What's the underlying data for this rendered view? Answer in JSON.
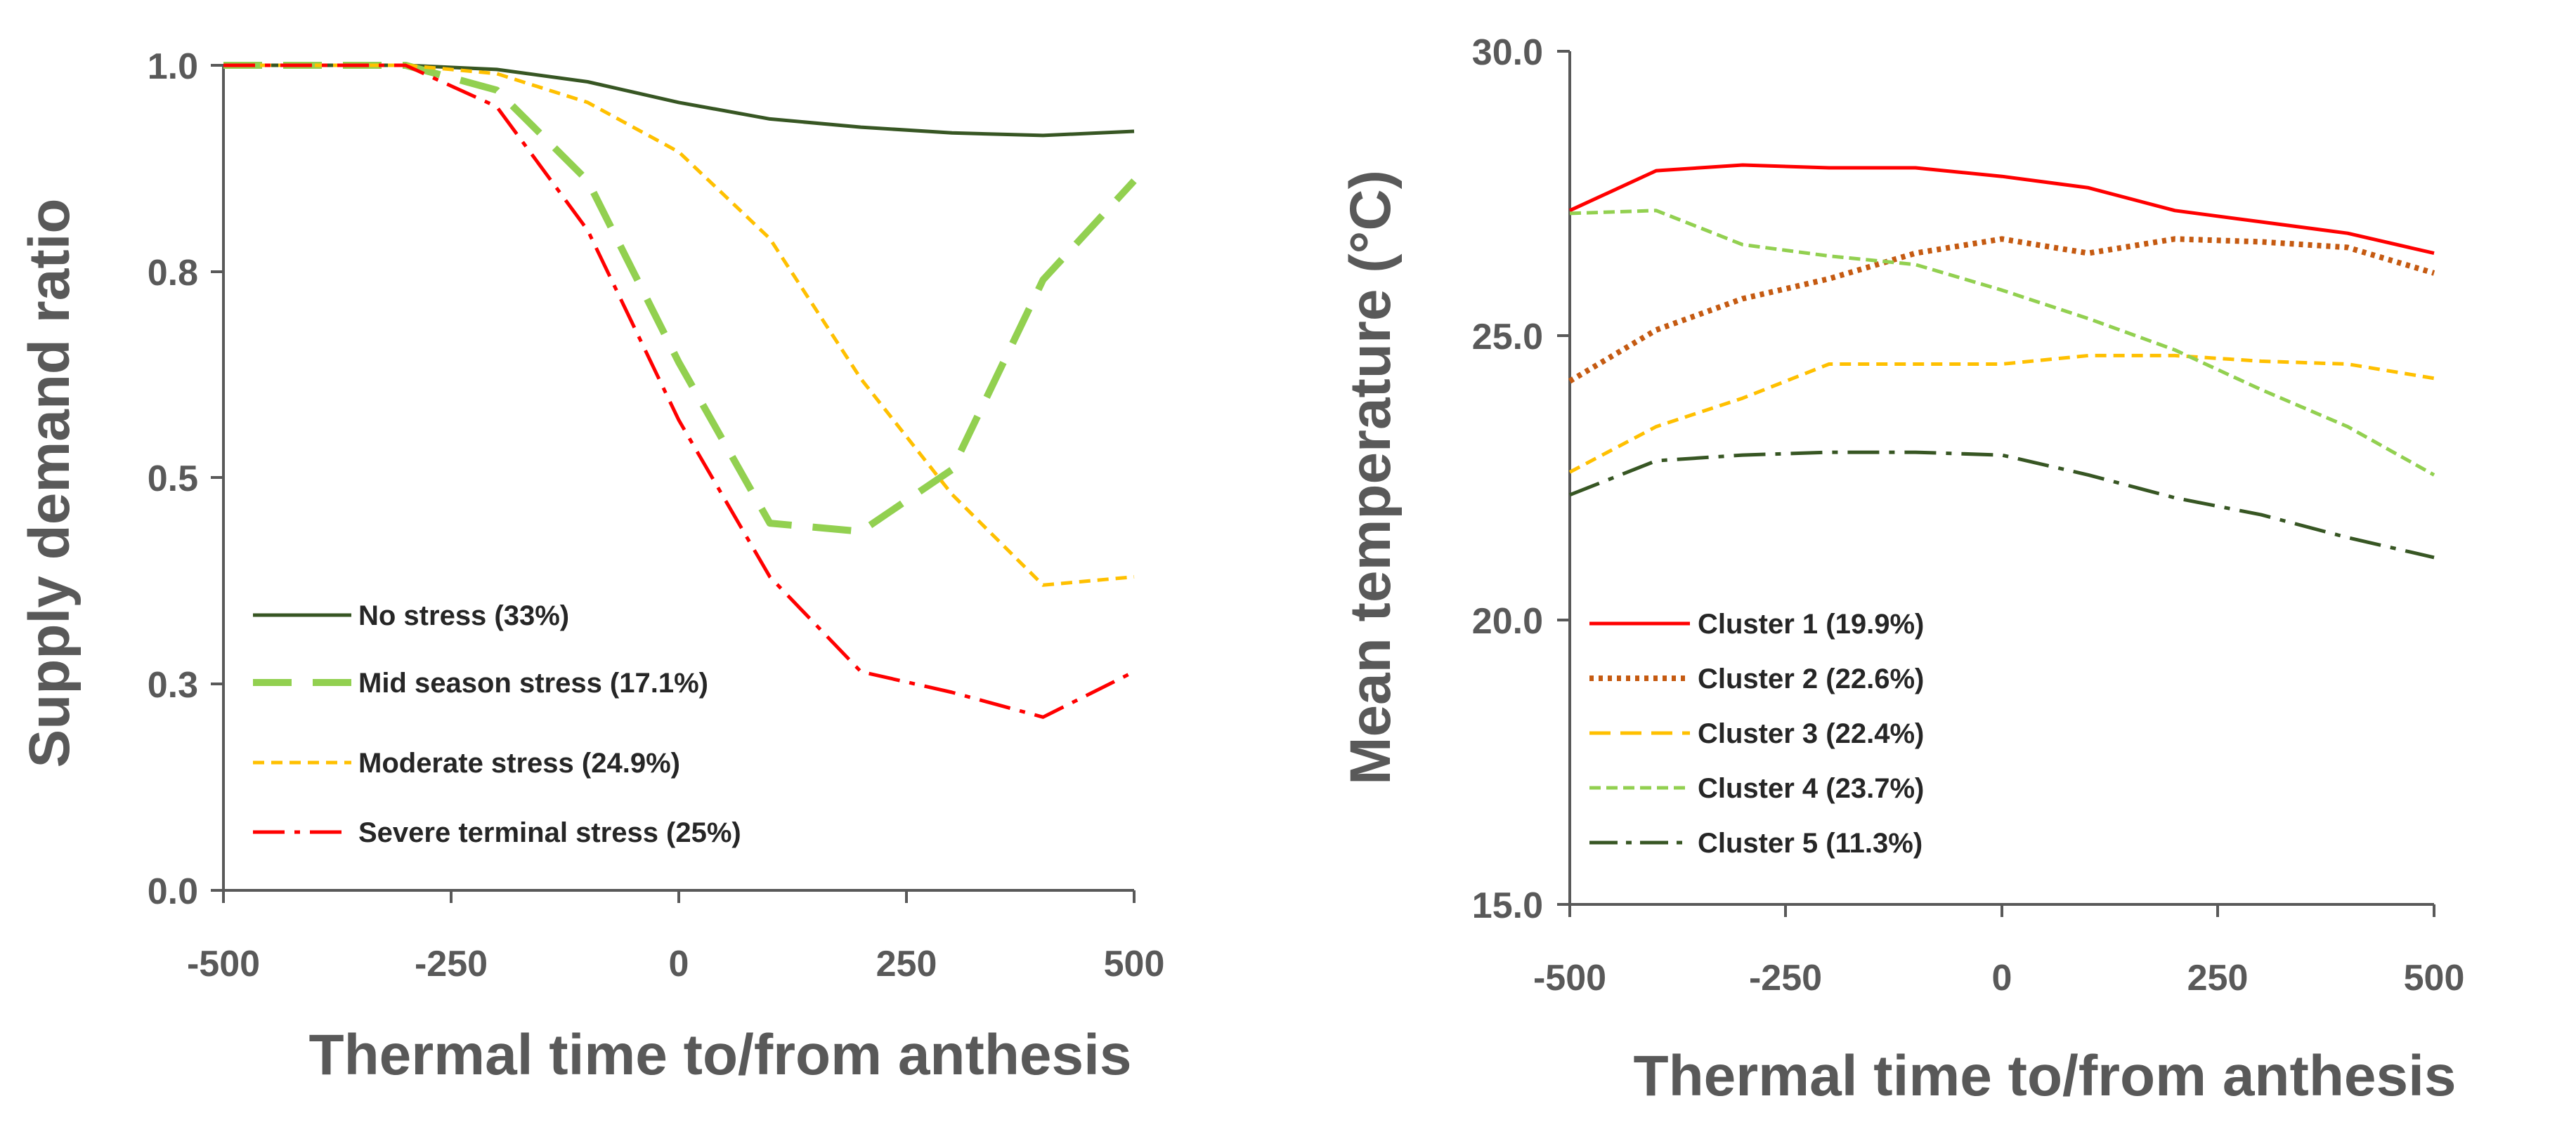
{
  "chart_data": [
    {
      "type": "line",
      "title": "",
      "xlabel": "Thermal time to/from anthesis",
      "ylabel": "Supply demand ratio",
      "xlim": [
        -500,
        500
      ],
      "ylim": [
        0.0,
        1.0
      ],
      "x_ticks": [
        "-500",
        "-250",
        "0",
        "250",
        "500"
      ],
      "y_ticks": [
        "0.0",
        "0.3",
        "0.5",
        "0.8",
        "1.0"
      ],
      "grid": false,
      "legend_position": "bottom-left",
      "series": [
        {
          "name": "No stress (33%)",
          "color": "#375623",
          "style": "solid",
          "x": [
            -500,
            -400,
            -300,
            -200,
            -100,
            0,
            100,
            200,
            300,
            400,
            500
          ],
          "y": [
            1.0,
            1.0,
            1.0,
            0.995,
            0.98,
            0.955,
            0.935,
            0.925,
            0.918,
            0.915,
            0.92
          ]
        },
        {
          "name": "Mid season stress  (17.1%)",
          "color": "#92D050",
          "style": "long-dash",
          "x": [
            -500,
            -400,
            -300,
            -200,
            -100,
            0,
            100,
            200,
            300,
            400,
            500
          ],
          "y": [
            1.0,
            1.0,
            1.0,
            0.97,
            0.86,
            0.64,
            0.445,
            0.435,
            0.51,
            0.74,
            0.86
          ]
        },
        {
          "name": "Moderate stress (24.9%)",
          "color": "#FFC000",
          "style": "dash",
          "x": [
            -500,
            -400,
            -300,
            -200,
            -100,
            0,
            100,
            200,
            300,
            400,
            500
          ],
          "y": [
            1.0,
            1.0,
            1.0,
            0.99,
            0.955,
            0.895,
            0.79,
            0.62,
            0.48,
            0.37,
            0.38
          ]
        },
        {
          "name": "Severe terminal stress (25%)",
          "color": "#FF0000",
          "style": "dash-dot",
          "x": [
            -500,
            -400,
            -300,
            -200,
            -100,
            0,
            100,
            200,
            300,
            400,
            500
          ],
          "y": [
            1.0,
            1.0,
            1.0,
            0.95,
            0.8,
            0.57,
            0.38,
            0.265,
            0.24,
            0.21,
            0.265
          ]
        }
      ]
    },
    {
      "type": "line",
      "title": "",
      "xlabel": "Thermal time to/from anthesis",
      "ylabel": "Mean temperature (°C)",
      "xlim": [
        -500,
        500
      ],
      "ylim": [
        15.0,
        30.0
      ],
      "x_ticks": [
        "-500",
        "-250",
        "0",
        "250",
        "500"
      ],
      "y_ticks": [
        "15.0",
        "20.0",
        "25.0",
        "30.0"
      ],
      "grid": false,
      "legend_position": "bottom-left",
      "series": [
        {
          "name": "Cluster 1 (19.9%)",
          "color": "#FF0000",
          "style": "solid",
          "x": [
            -500,
            -400,
            -300,
            -200,
            -100,
            0,
            100,
            200,
            300,
            400,
            500
          ],
          "y": [
            27.2,
            27.9,
            28.0,
            27.95,
            27.95,
            27.8,
            27.6,
            27.2,
            27.0,
            26.8,
            26.45
          ]
        },
        {
          "name": "Cluster 2 (22.6%)",
          "color": "#C55A11",
          "style": "dotted",
          "x": [
            -500,
            -400,
            -300,
            -200,
            -100,
            0,
            100,
            200,
            300,
            400,
            500
          ],
          "y": [
            24.2,
            25.1,
            25.65,
            26.0,
            26.45,
            26.7,
            26.45,
            26.7,
            26.65,
            26.55,
            26.1
          ]
        },
        {
          "name": "Cluster 3 (22.4%)",
          "color": "#FFC000",
          "style": "dash",
          "x": [
            -500,
            -400,
            -300,
            -200,
            -100,
            0,
            100,
            200,
            300,
            400,
            500
          ],
          "y": [
            22.6,
            23.4,
            23.9,
            24.5,
            24.5,
            24.5,
            24.65,
            24.65,
            24.55,
            24.5,
            24.25
          ]
        },
        {
          "name": "Cluster 4 (23.7%)",
          "color": "#92D050",
          "style": "short-dash",
          "x": [
            -500,
            -400,
            -300,
            -200,
            -100,
            0,
            100,
            200,
            300,
            400,
            500
          ],
          "y": [
            27.15,
            27.2,
            26.6,
            26.4,
            26.25,
            25.8,
            25.3,
            24.75,
            24.05,
            23.4,
            22.55
          ]
        },
        {
          "name": "Cluster 5 (11.3%)",
          "color": "#375623",
          "style": "dash-dot",
          "x": [
            -500,
            -400,
            -300,
            -200,
            -100,
            0,
            100,
            200,
            300,
            400,
            500
          ],
          "y": [
            22.2,
            22.8,
            22.9,
            22.95,
            22.95,
            22.9,
            22.55,
            22.15,
            21.85,
            21.45,
            21.1
          ]
        }
      ]
    }
  ]
}
